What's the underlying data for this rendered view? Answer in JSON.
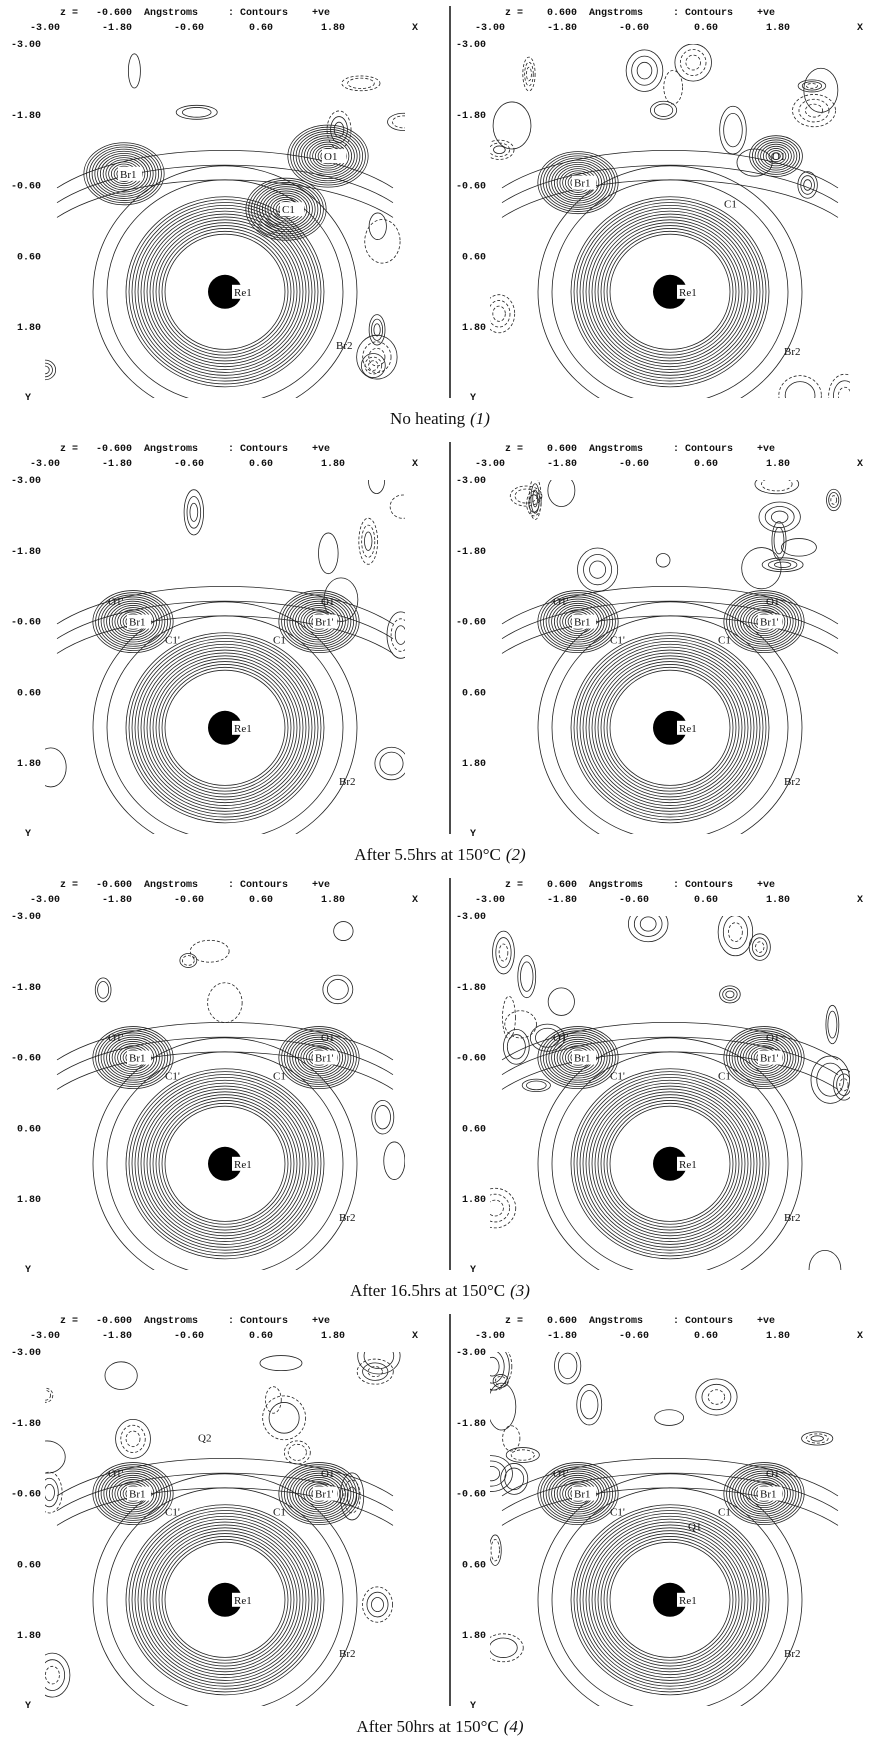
{
  "axes": {
    "x_ticks": [
      "-3.00",
      "-1.80",
      "-0.60",
      "0.60",
      "1.80"
    ],
    "x_label": "X",
    "y_ticks": [
      "-3.00",
      "-1.80",
      "-0.60",
      "0.60",
      "1.80"
    ],
    "y_label": "Y"
  },
  "rows": [
    {
      "caption": "No heating",
      "number": "(1)",
      "panels": [
        {
          "header": "z =   -0.600  Angstroms     : Contours    +ve",
          "atoms": [
            "Br1",
            "O1",
            "C1",
            "Re1",
            "Br2"
          ]
        },
        {
          "header": "z =    0.600  Angstroms     : Contours    +ve",
          "atoms": [
            "Br1",
            "O1",
            "C1",
            "Re1",
            "Br2"
          ]
        }
      ]
    },
    {
      "caption": "After 5.5hrs at 150°C",
      "number": "(2)",
      "panels": [
        {
          "header": "z =   -0.600  Angstroms     : Contours    +ve",
          "atoms": [
            "O1'",
            "Br1",
            "C1'",
            "O1",
            "Br1'",
            "C1",
            "Re1",
            "Br2"
          ]
        },
        {
          "header": "z =    0.600  Angstroms     : Contours    +ve",
          "atoms": [
            "O1'",
            "Br1",
            "C1'",
            "O1",
            "Br1'",
            "C1",
            "Re1",
            "Br2"
          ]
        }
      ]
    },
    {
      "caption": "After 16.5hrs at 150°C",
      "number": "(3)",
      "panels": [
        {
          "header": "z =   -0.600  Angstroms     : Contours    +ve",
          "atoms": [
            "O1'",
            "Br1",
            "C1'",
            "O1",
            "Br1'",
            "C1",
            "Re1",
            "Br2"
          ]
        },
        {
          "header": "z =    0.600  Angstroms     : Contours    +ve",
          "atoms": [
            "O1'",
            "Br1",
            "C1'",
            "O1",
            "Br1'",
            "C1",
            "Re1",
            "Br2"
          ]
        }
      ]
    },
    {
      "caption": "After 50hrs at 150°C",
      "number": "(4)",
      "panels": [
        {
          "header": "z =   -0.600  Angstroms     : Contours    +ve",
          "atoms": [
            "Q2",
            "O1'",
            "Br1",
            "C1'",
            "O1",
            "Br1'",
            "C1",
            "Re1",
            "Br2"
          ]
        },
        {
          "header": "z =    0.600  Angstroms     : Contours    +ve",
          "atoms": [
            "O1'",
            "Br1",
            "C1'",
            "Q1",
            "C1",
            "O1",
            "Br1",
            "Re1",
            "Br2"
          ]
        }
      ]
    }
  ]
}
